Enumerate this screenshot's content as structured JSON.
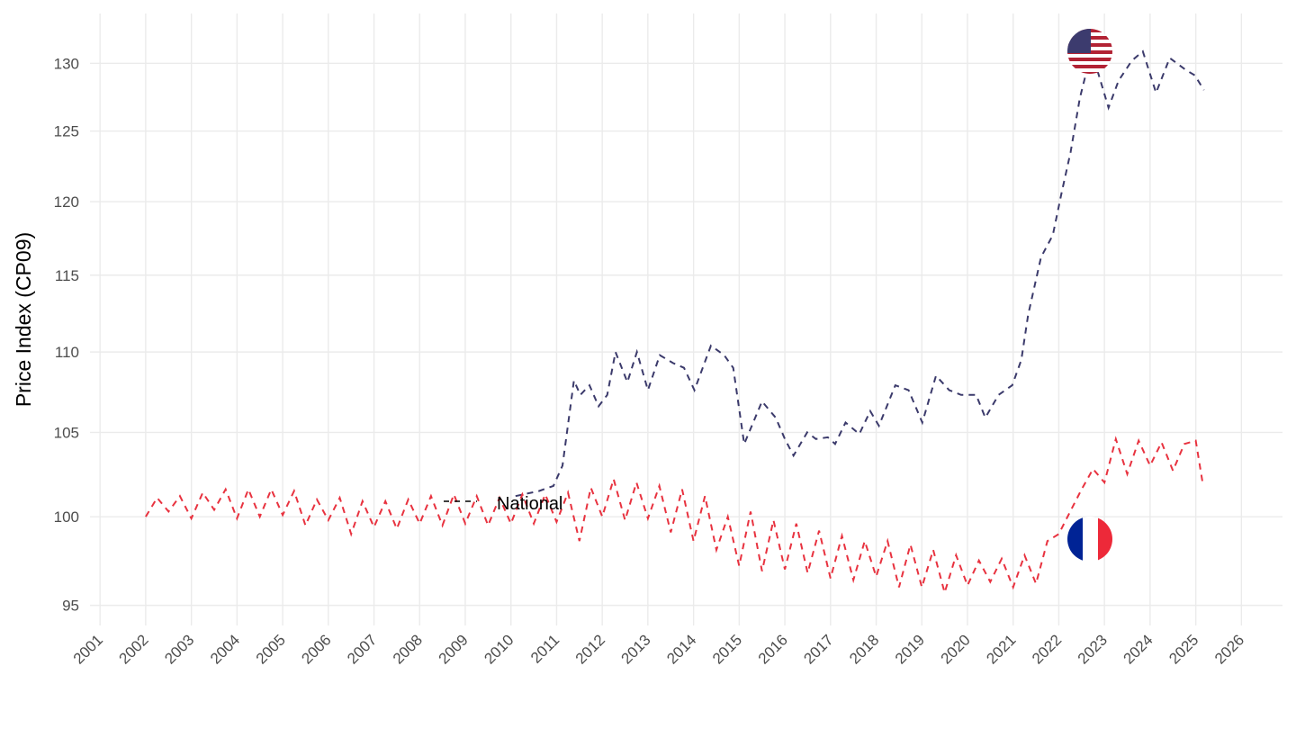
{
  "chart_data": {
    "type": "line",
    "y_label": "Price Index (CP09)",
    "legend_label": "National",
    "log_y": true,
    "grid": true,
    "xlim": [
      2000.78,
      2026.9
    ],
    "xticks": [
      2001,
      2002,
      2003,
      2004,
      2005,
      2006,
      2007,
      2008,
      2009,
      2010,
      2011,
      2012,
      2013,
      2014,
      2015,
      2016,
      2017,
      2018,
      2019,
      2020,
      2021,
      2022,
      2023,
      2024,
      2025,
      2026
    ],
    "ylim": [
      93.9,
      133.8
    ],
    "yticks": [
      95,
      100,
      105,
      110,
      115,
      120,
      125,
      130
    ],
    "series": [
      {
        "name": "United States",
        "color": "#3b3a6b",
        "x": [
          2010.1,
          2010.62,
          2010.93,
          2011.13,
          2011.38,
          2011.52,
          2011.72,
          2011.92,
          2012.11,
          2012.29,
          2012.55,
          2012.76,
          2013.0,
          2013.26,
          2013.55,
          2013.79,
          2014.02,
          2014.38,
          2014.67,
          2014.87,
          2015.11,
          2015.5,
          2015.8,
          2016.0,
          2016.19,
          2016.49,
          2016.68,
          2016.94,
          2017.1,
          2017.33,
          2017.63,
          2017.87,
          2018.06,
          2018.42,
          2018.71,
          2019.01,
          2019.31,
          2019.6,
          2019.86,
          2020.19,
          2020.39,
          2020.68,
          2020.98,
          2021.18,
          2021.33,
          2021.61,
          2021.87,
          2022.06,
          2022.26,
          2022.46,
          2022.66,
          2022.85,
          2023.09,
          2023.31,
          2023.6,
          2023.84,
          2024.13,
          2024.43,
          2024.78,
          2024.98,
          2025.18
        ],
        "values": [
          101.2,
          101.5,
          101.8,
          103,
          108.2,
          107.3,
          107.9,
          106.6,
          107.3,
          110,
          108.1,
          110,
          107.6,
          109.8,
          109.3,
          109,
          107.6,
          110.4,
          109.8,
          109,
          104.3,
          106.9,
          105.9,
          104.6,
          103.6,
          105,
          104.6,
          104.7,
          104.3,
          105.6,
          104.9,
          106.3,
          105.4,
          107.9,
          107.6,
          105.6,
          108.5,
          107.6,
          107.3,
          107.3,
          105.9,
          107.3,
          107.9,
          109.5,
          112.4,
          116.2,
          117.7,
          120.6,
          123.5,
          127.4,
          130.1,
          129.4,
          126.7,
          128.7,
          130.2,
          130.9,
          127.8,
          130.4,
          129.5,
          129.1,
          128
        ]
      },
      {
        "name": "France",
        "color": "#e8323f",
        "x": [
          2002,
          2002.25,
          2002.5,
          2002.75,
          2003,
          2003.25,
          2003.5,
          2003.75,
          2004,
          2004.25,
          2004.5,
          2004.75,
          2005,
          2005.25,
          2005.5,
          2005.75,
          2006,
          2006.25,
          2006.5,
          2006.75,
          2007,
          2007.25,
          2007.5,
          2007.75,
          2008,
          2008.25,
          2008.5,
          2008.75,
          2009,
          2009.25,
          2009.5,
          2009.75,
          2010,
          2010.25,
          2010.5,
          2010.75,
          2011,
          2011.25,
          2011.5,
          2011.75,
          2012,
          2012.25,
          2012.5,
          2012.75,
          2013,
          2013.25,
          2013.5,
          2013.75,
          2014,
          2014.25,
          2014.5,
          2014.75,
          2015,
          2015.25,
          2015.5,
          2015.75,
          2016,
          2016.25,
          2016.5,
          2016.75,
          2017,
          2017.25,
          2017.5,
          2017.75,
          2018,
          2018.25,
          2018.5,
          2018.75,
          2019,
          2019.25,
          2019.5,
          2019.75,
          2020,
          2020.25,
          2020.5,
          2020.75,
          2021,
          2021.25,
          2021.5,
          2021.75,
          2022,
          2022.25,
          2022.5,
          2022.75,
          2023,
          2023.25,
          2023.5,
          2023.75,
          2024,
          2024.25,
          2024.5,
          2024.75,
          2025,
          2025.15
        ],
        "values": [
          100.0,
          101.1,
          100.3,
          101.2,
          99.9,
          101.4,
          100.4,
          101.6,
          99.9,
          101.6,
          100.0,
          101.6,
          100.1,
          101.5,
          99.5,
          101.0,
          99.8,
          101.1,
          99.0,
          100.9,
          99.4,
          100.9,
          99.3,
          101.0,
          99.6,
          101.2,
          99.5,
          101.3,
          99.6,
          101.2,
          99.5,
          101.1,
          99.6,
          101.3,
          99.6,
          101.3,
          99.7,
          101.4,
          98.6,
          101.7,
          100.0,
          102.2,
          99.8,
          102.0,
          99.9,
          101.8,
          99.1,
          101.6,
          98.6,
          101.2,
          98.1,
          100.0,
          97.2,
          100.3,
          96.9,
          99.8,
          97.0,
          99.6,
          96.8,
          99.2,
          96.5,
          98.9,
          96.4,
          98.6,
          96.6,
          98.6,
          96.0,
          98.4,
          96.0,
          98.1,
          95.7,
          97.8,
          96.1,
          97.5,
          96.3,
          97.6,
          96.0,
          97.8,
          96.2,
          98.6,
          99.0,
          100.3,
          101.6,
          102.8,
          102.0,
          104.6,
          102.5,
          104.5,
          103.0,
          104.4,
          102.7,
          104.3,
          104.5,
          102.0
        ]
      }
    ]
  }
}
